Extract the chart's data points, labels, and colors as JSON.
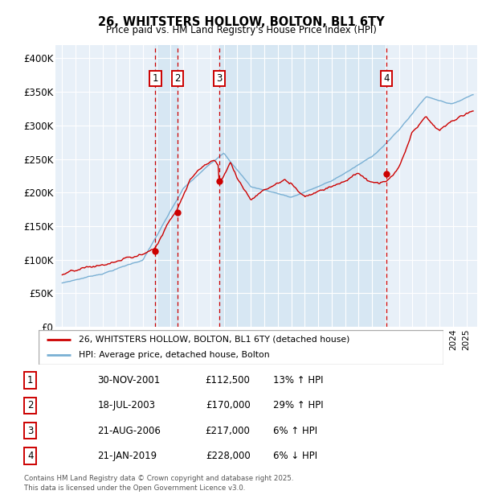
{
  "title1": "26, WHITSTERS HOLLOW, BOLTON, BL1 6TY",
  "title2": "Price paid vs. HM Land Registry's House Price Index (HPI)",
  "legend_line1": "26, WHITSTERS HOLLOW, BOLTON, BL1 6TY (detached house)",
  "legend_line2": "HPI: Average price, detached house, Bolton",
  "footer": "Contains HM Land Registry data © Crown copyright and database right 2025.\nThis data is licensed under the Open Government Licence v3.0.",
  "transactions": [
    {
      "num": 1,
      "date": "30-NOV-2001",
      "price": 112500,
      "year": 2001.92,
      "pct": "13%",
      "dir": "↑"
    },
    {
      "num": 2,
      "date": "18-JUL-2003",
      "price": 170000,
      "year": 2003.54,
      "pct": "29%",
      "dir": "↑"
    },
    {
      "num": 3,
      "date": "21-AUG-2006",
      "price": 217000,
      "year": 2006.64,
      "pct": "6%",
      "dir": "↑"
    },
    {
      "num": 4,
      "date": "21-JAN-2019",
      "price": 228000,
      "year": 2019.06,
      "pct": "6%",
      "dir": "↓"
    }
  ],
  "hpi_color": "#7ab0d4",
  "price_color": "#cc0000",
  "background_color": "#e8f0f8",
  "shade_color": "#dce8f5",
  "grid_color": "#ffffff",
  "vline_color": "#cc0000",
  "ylim": [
    0,
    420000
  ],
  "yticks": [
    0,
    50000,
    100000,
    150000,
    200000,
    250000,
    300000,
    350000,
    400000
  ],
  "ytick_labels": [
    "£0",
    "£50K",
    "£100K",
    "£150K",
    "£200K",
    "£250K",
    "£300K",
    "£350K",
    "£400K"
  ],
  "xlim_start": 1994.5,
  "xlim_end": 2025.8
}
